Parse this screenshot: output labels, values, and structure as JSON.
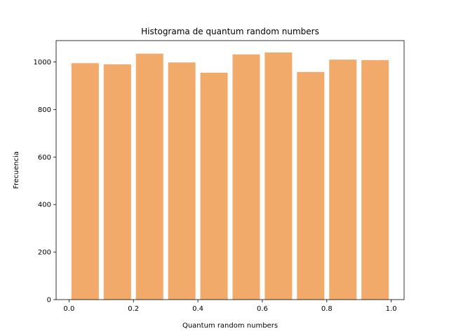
{
  "chart_data": {
    "type": "bar",
    "title": "Histograma de quantum random numbers",
    "xlabel": "Quantum random numbers",
    "ylabel": "Frecuencia",
    "bin_edges": [
      0.0,
      0.1,
      0.2,
      0.3,
      0.4,
      0.5,
      0.6,
      0.7,
      0.8,
      0.9,
      1.0
    ],
    "values": [
      995,
      990,
      1035,
      998,
      955,
      1032,
      1040,
      958,
      1010,
      1008
    ],
    "bar_fill_fraction": 0.85,
    "xlim": [
      -0.04,
      1.04
    ],
    "ylim": [
      0,
      1090
    ],
    "xticks": [
      0.0,
      0.2,
      0.4,
      0.6,
      0.8,
      1.0
    ],
    "xtick_labels": [
      "0.0",
      "0.2",
      "0.4",
      "0.6",
      "0.8",
      "1.0"
    ],
    "yticks": [
      0,
      200,
      400,
      600,
      800,
      1000
    ],
    "ytick_labels": [
      "0",
      "200",
      "400",
      "600",
      "800",
      "1000"
    ],
    "bar_color": "#f2aa6b",
    "grid": false,
    "legend": "none"
  }
}
